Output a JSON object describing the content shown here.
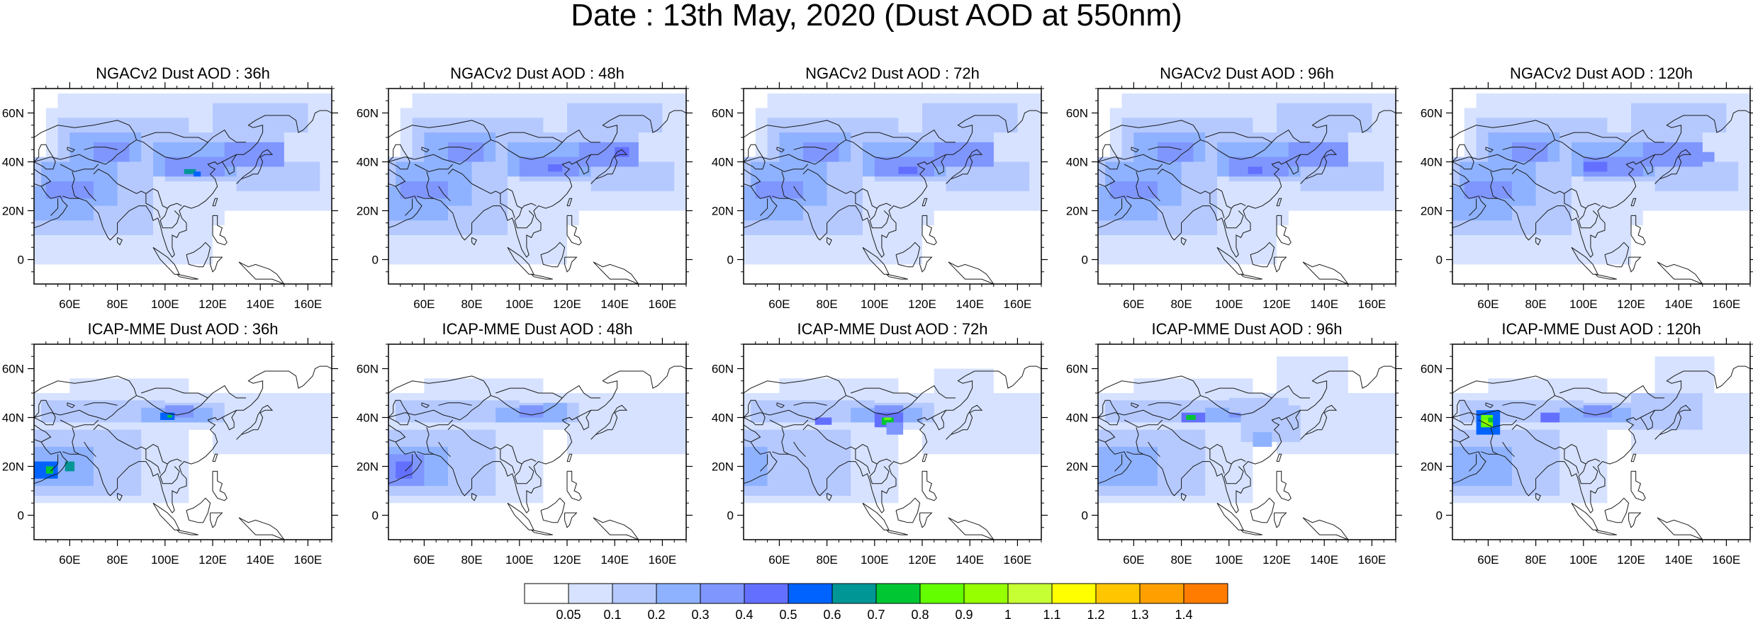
{
  "title": "Date : 13th May, 2020 (Dust AOD at 550nm)",
  "map": {
    "lon_range": [
      45,
      170
    ],
    "lat_range": [
      -10,
      70
    ],
    "lon_ticks": [
      "60E",
      "80E",
      "100E",
      "120E",
      "140E",
      "160E"
    ],
    "lat_ticks": [
      "60N",
      "40N",
      "20N",
      "0"
    ],
    "region": "Asia"
  },
  "panels": [
    {
      "title": "NGACv2 Dust AOD : 36h",
      "model": "NGACv2",
      "lead": "36h"
    },
    {
      "title": "NGACv2 Dust AOD : 48h",
      "model": "NGACv2",
      "lead": "48h"
    },
    {
      "title": "NGACv2 Dust AOD : 72h",
      "model": "NGACv2",
      "lead": "72h"
    },
    {
      "title": "NGACv2 Dust AOD : 96h",
      "model": "NGACv2",
      "lead": "96h"
    },
    {
      "title": "NGACv2 Dust AOD : 120h",
      "model": "NGACv2",
      "lead": "120h"
    },
    {
      "title": "ICAP-MME Dust AOD : 36h",
      "model": "ICAP-MME",
      "lead": "36h"
    },
    {
      "title": "ICAP-MME Dust AOD : 48h",
      "model": "ICAP-MME",
      "lead": "48h"
    },
    {
      "title": "ICAP-MME Dust AOD : 72h",
      "model": "ICAP-MME",
      "lead": "72h"
    },
    {
      "title": "ICAP-MME Dust AOD : 96h",
      "model": "ICAP-MME",
      "lead": "96h"
    },
    {
      "title": "ICAP-MME Dust AOD : 120h",
      "model": "ICAP-MME",
      "lead": "120h"
    }
  ],
  "colorbar": {
    "labels": [
      "0.05",
      "0.1",
      "0.2",
      "0.3",
      "0.4",
      "0.5",
      "0.6",
      "0.7",
      "0.8",
      "0.9",
      "1",
      "1.1",
      "1.2",
      "1.3",
      "1.4"
    ],
    "colors": [
      "#ffffff",
      "#d6e2ff",
      "#b5c9ff",
      "#8eb2ff",
      "#7f96ff",
      "#6370ff",
      "#0063ff",
      "#009696",
      "#00c633",
      "#63ff00",
      "#96ff00",
      "#c6ff33",
      "#ffff00",
      "#ffc600",
      "#ffa000",
      "#ff7c00",
      "#ff1900"
    ]
  }
}
